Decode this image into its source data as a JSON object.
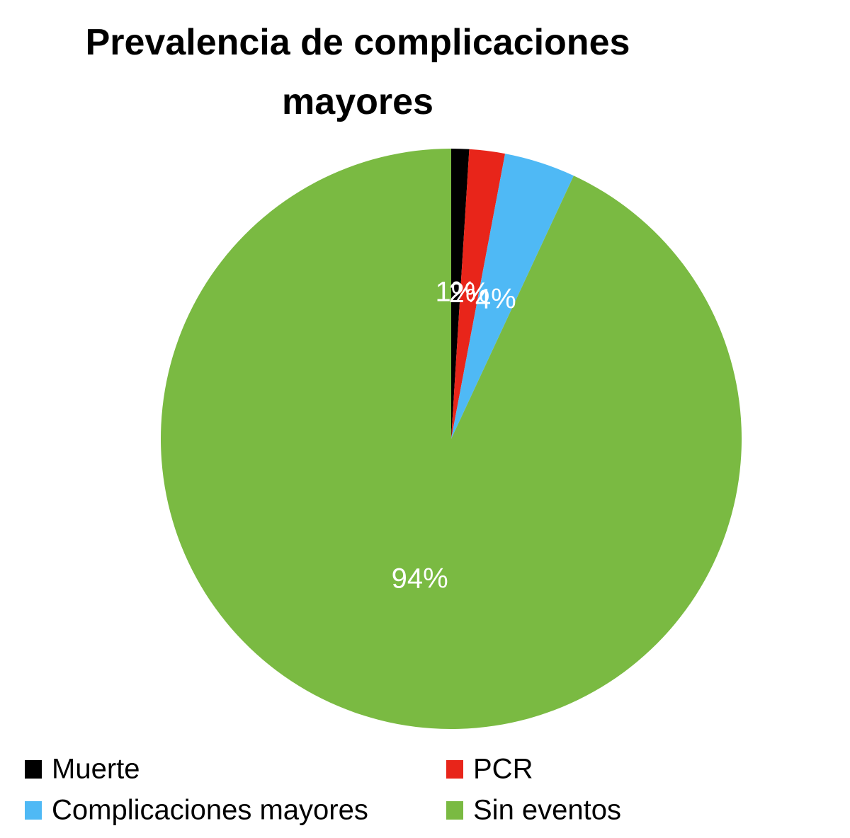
{
  "chart_data": {
    "type": "pie",
    "title": "Prevalencia de complicaciones mayores",
    "categories": [
      "Muerte",
      "PCR",
      "Complicaciones mayores",
      "Sin eventos"
    ],
    "values": [
      1,
      2,
      4,
      94
    ],
    "value_labels": [
      "1%",
      "2%",
      "4%",
      "94%"
    ],
    "colors": [
      "#000000",
      "#e8251a",
      "#4fb9f5",
      "#7aba42"
    ],
    "legend": "bottom"
  }
}
